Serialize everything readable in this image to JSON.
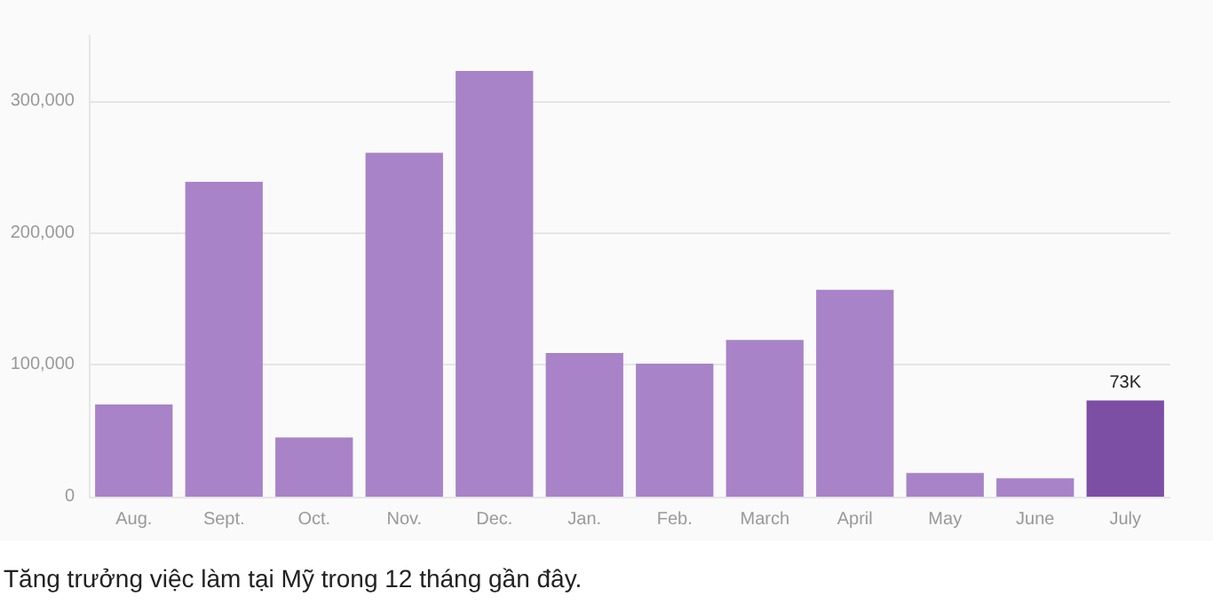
{
  "chart_data": {
    "type": "bar",
    "categories": [
      "Aug.",
      "Sept.",
      "Oct.",
      "Nov.",
      "Dec.",
      "Jan.",
      "Feb.",
      "March",
      "April",
      "May",
      "June",
      "July"
    ],
    "values": [
      70000,
      239000,
      45000,
      261000,
      323000,
      109000,
      101000,
      119000,
      157000,
      18000,
      14000,
      73000
    ],
    "colors": [
      "#a883c7",
      "#a883c7",
      "#a883c7",
      "#a883c7",
      "#a883c7",
      "#a883c7",
      "#a883c7",
      "#a883c7",
      "#a883c7",
      "#a883c7",
      "#a883c7",
      "#7c4fa5"
    ],
    "value_labels": [
      null,
      null,
      null,
      null,
      null,
      null,
      null,
      null,
      null,
      null,
      null,
      "73K"
    ],
    "ylim": [
      0,
      350000
    ],
    "yticks": [
      0,
      {
        "value": 100000,
        "label": "100,000"
      },
      {
        "value": 200000,
        "label": "200,000"
      },
      {
        "value": 300000,
        "label": "300,000"
      }
    ],
    "grid": "y",
    "annotations": [
      "Tăng trưởng việc làm tại Mỹ trong 12 tháng gần đây."
    ]
  }
}
